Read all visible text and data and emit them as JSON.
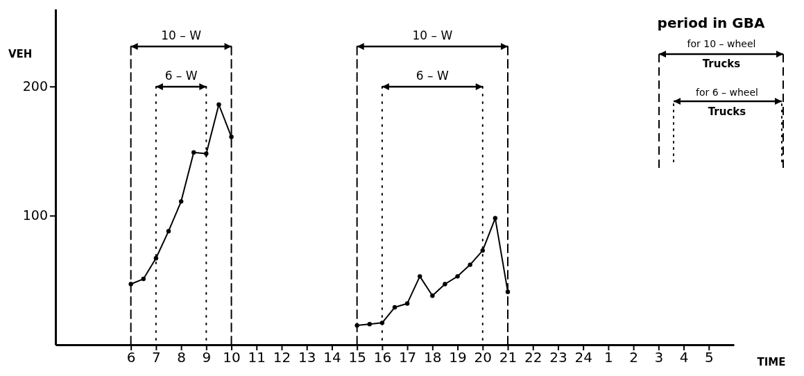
{
  "chart_data": {
    "type": "line",
    "xlabel": "TIME",
    "ylabel": "VEH",
    "categories": [
      null,
      null,
      null,
      null,
      null,
      null,
      "6",
      null,
      "7",
      null,
      "8",
      null,
      "9",
      null,
      "10",
      null,
      "11",
      null,
      "12",
      null,
      "13",
      null,
      "14",
      null,
      "15",
      null,
      "16",
      null,
      "17",
      null,
      "18",
      null,
      "19",
      null,
      "20",
      null,
      "21",
      null,
      "22",
      null,
      "23",
      null,
      "24",
      null,
      "1",
      null,
      "2",
      null,
      "3",
      null,
      "4",
      null,
      "5",
      null,
      null
    ],
    "ylim": [
      0,
      260
    ],
    "yticks": [
      100,
      200
    ],
    "marker": "circle",
    "line_style": "solid",
    "series": [
      {
        "color": "#000000",
        "values": [
          null,
          null,
          null,
          null,
          null,
          null,
          47,
          51,
          67,
          88,
          111,
          149,
          148,
          186,
          161,
          null,
          null,
          null,
          null,
          null,
          null,
          null,
          null,
          null,
          15,
          16,
          17,
          29,
          32,
          53,
          38,
          47,
          53,
          62,
          73,
          98,
          41,
          null,
          null,
          null,
          null,
          null,
          null,
          null,
          null,
          null,
          null,
          null,
          null,
          null,
          null,
          null,
          null,
          null,
          null
        ]
      }
    ],
    "ref_lines": [
      {
        "axis": "x",
        "value": "6",
        "line_style": "dashed",
        "color": "#000000"
      },
      {
        "axis": "x",
        "value": "10",
        "line_style": "dashed",
        "color": "#000000"
      },
      {
        "axis": "x",
        "value": "7",
        "line_style": "dotted",
        "color": "#000000"
      },
      {
        "axis": "x",
        "value": "9",
        "line_style": "dotted",
        "color": "#000000"
      },
      {
        "axis": "x",
        "value": "15",
        "line_style": "dashed",
        "color": "#000000"
      },
      {
        "axis": "x",
        "value": "21",
        "line_style": "dashed",
        "color": "#000000"
      },
      {
        "axis": "x",
        "value": "16",
        "line_style": "dotted",
        "color": "#000000"
      },
      {
        "axis": "x",
        "value": "20",
        "line_style": "dotted",
        "color": "#000000"
      }
    ],
    "annotations": [
      "10 – W",
      "6 – W",
      "10 – W",
      "6 – W",
      "period in GBA",
      "for 10 – wheel",
      "Trucks",
      "for 6 – wheel",
      "Trucks"
    ]
  }
}
